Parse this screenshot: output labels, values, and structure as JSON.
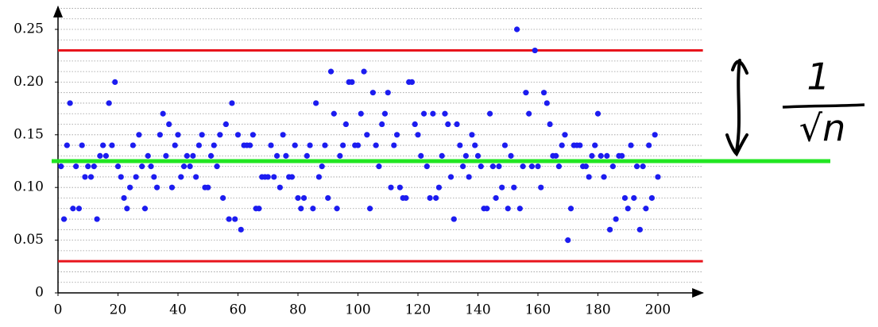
{
  "chart_data": {
    "type": "scatter",
    "x": [
      1,
      2,
      3,
      4,
      5,
      6,
      7,
      8,
      9,
      10,
      11,
      12,
      13,
      14,
      15,
      16,
      17,
      18,
      19,
      20,
      21,
      22,
      23,
      24,
      25,
      26,
      27,
      28,
      29,
      30,
      31,
      32,
      33,
      34,
      35,
      36,
      37,
      38,
      39,
      40,
      41,
      42,
      43,
      44,
      45,
      46,
      47,
      48,
      49,
      50,
      51,
      52,
      53,
      54,
      55,
      56,
      57,
      58,
      59,
      60,
      61,
      62,
      63,
      64,
      65,
      66,
      67,
      68,
      69,
      70,
      71,
      72,
      73,
      74,
      75,
      76,
      77,
      78,
      79,
      80,
      81,
      82,
      83,
      84,
      85,
      86,
      87,
      88,
      89,
      90,
      91,
      92,
      93,
      94,
      95,
      96,
      97,
      98,
      99,
      100,
      101,
      102,
      103,
      104,
      105,
      106,
      107,
      108,
      109,
      110,
      111,
      112,
      113,
      114,
      115,
      116,
      117,
      118,
      119,
      120,
      121,
      122,
      123,
      124,
      125,
      126,
      127,
      128,
      129,
      130,
      131,
      132,
      133,
      134,
      135,
      136,
      137,
      138,
      139,
      140,
      141,
      142,
      143,
      144,
      145,
      146,
      147,
      148,
      149,
      150,
      151,
      152,
      153,
      154,
      155,
      156,
      157,
      158,
      159,
      160,
      161,
      162,
      163,
      164,
      165,
      166,
      167,
      168,
      169,
      170,
      171,
      172,
      173,
      174,
      175,
      176,
      177,
      178,
      179,
      180,
      181,
      182,
      183,
      184,
      185,
      186,
      187,
      188,
      189,
      190,
      191,
      192,
      193,
      194,
      195,
      196,
      197,
      198,
      199,
      200
    ],
    "values": [
      0.12,
      0.07,
      0.14,
      0.18,
      0.08,
      0.12,
      0.08,
      0.14,
      0.11,
      0.12,
      0.11,
      0.12,
      0.07,
      0.13,
      0.14,
      0.13,
      0.18,
      0.14,
      0.2,
      0.12,
      0.11,
      0.09,
      0.08,
      0.1,
      0.14,
      0.11,
      0.15,
      0.12,
      0.08,
      0.13,
      0.12,
      0.11,
      0.1,
      0.15,
      0.17,
      0.13,
      0.16,
      0.1,
      0.14,
      0.15,
      0.11,
      0.12,
      0.13,
      0.12,
      0.13,
      0.11,
      0.14,
      0.15,
      0.1,
      0.1,
      0.13,
      0.14,
      0.12,
      0.15,
      0.09,
      0.16,
      0.07,
      0.18,
      0.07,
      0.15,
      0.06,
      0.14,
      0.14,
      0.14,
      0.15,
      0.08,
      0.08,
      0.11,
      0.11,
      0.11,
      0.14,
      0.11,
      0.13,
      0.1,
      0.15,
      0.13,
      0.11,
      0.11,
      0.14,
      0.09,
      0.08,
      0.09,
      0.13,
      0.14,
      0.08,
      0.18,
      0.11,
      0.12,
      0.14,
      0.09,
      0.21,
      0.17,
      0.08,
      0.13,
      0.14,
      0.16,
      0.2,
      0.2,
      0.14,
      0.14,
      0.17,
      0.21,
      0.15,
      0.08,
      0.19,
      0.14,
      0.12,
      0.16,
      0.17,
      0.19,
      0.1,
      0.14,
      0.15,
      0.1,
      0.09,
      0.09,
      0.2,
      0.2,
      0.16,
      0.15,
      0.13,
      0.17,
      0.12,
      0.09,
      0.17,
      0.09,
      0.1,
      0.13,
      0.17,
      0.16,
      0.11,
      0.07,
      0.16,
      0.14,
      0.12,
      0.13,
      0.11,
      0.15,
      0.14,
      0.13,
      0.12,
      0.08,
      0.08,
      0.17,
      0.12,
      0.09,
      0.12,
      0.1,
      0.14,
      0.08,
      0.13,
      0.1,
      0.25,
      0.08,
      0.12,
      0.19,
      0.17,
      0.12,
      0.23,
      0.12,
      0.1,
      0.19,
      0.18,
      0.16,
      0.13,
      0.13,
      0.12,
      0.14,
      0.15,
      0.05,
      0.08,
      0.14,
      0.14,
      0.14,
      0.12,
      0.12,
      0.11,
      0.13,
      0.14,
      0.17,
      0.13,
      0.11,
      0.13,
      0.06,
      0.12,
      0.07,
      0.13,
      0.13,
      0.09,
      0.08,
      0.14,
      0.09,
      0.12,
      0.06,
      0.12,
      0.08,
      0.14,
      0.09,
      0.15,
      0.11
    ],
    "color": "#1c1cf0",
    "xlim": [
      0,
      215
    ],
    "ylim": [
      0,
      0.27
    ],
    "xticks": [
      0,
      20,
      40,
      60,
      80,
      100,
      120,
      140,
      160,
      180,
      200
    ],
    "yticks": [
      0,
      0.05,
      {
        "value": 0.1,
        "label": "0.10"
      },
      0.15,
      {
        "value": 0.2,
        "label": "0.20"
      },
      0.25
    ],
    "minor_yticks": [
      0.01,
      0.02,
      0.03,
      0.04,
      0.05,
      0.06,
      0.07,
      0.08,
      0.09,
      0.1,
      0.11,
      0.12,
      0.13,
      0.14,
      0.15,
      0.16,
      0.17,
      0.18,
      0.19,
      0.2,
      0.21,
      0.22,
      0.23,
      0.24,
      0.25,
      0.26,
      0.27
    ],
    "reference_lines": [
      {
        "value": 0.23,
        "color": "#e8141c"
      },
      {
        "value": 0.03,
        "color": "#e8141c"
      },
      {
        "value": 0.125,
        "color": "#22e622"
      }
    ],
    "annotation": {
      "numerator": "1",
      "denominator": "√n"
    }
  }
}
